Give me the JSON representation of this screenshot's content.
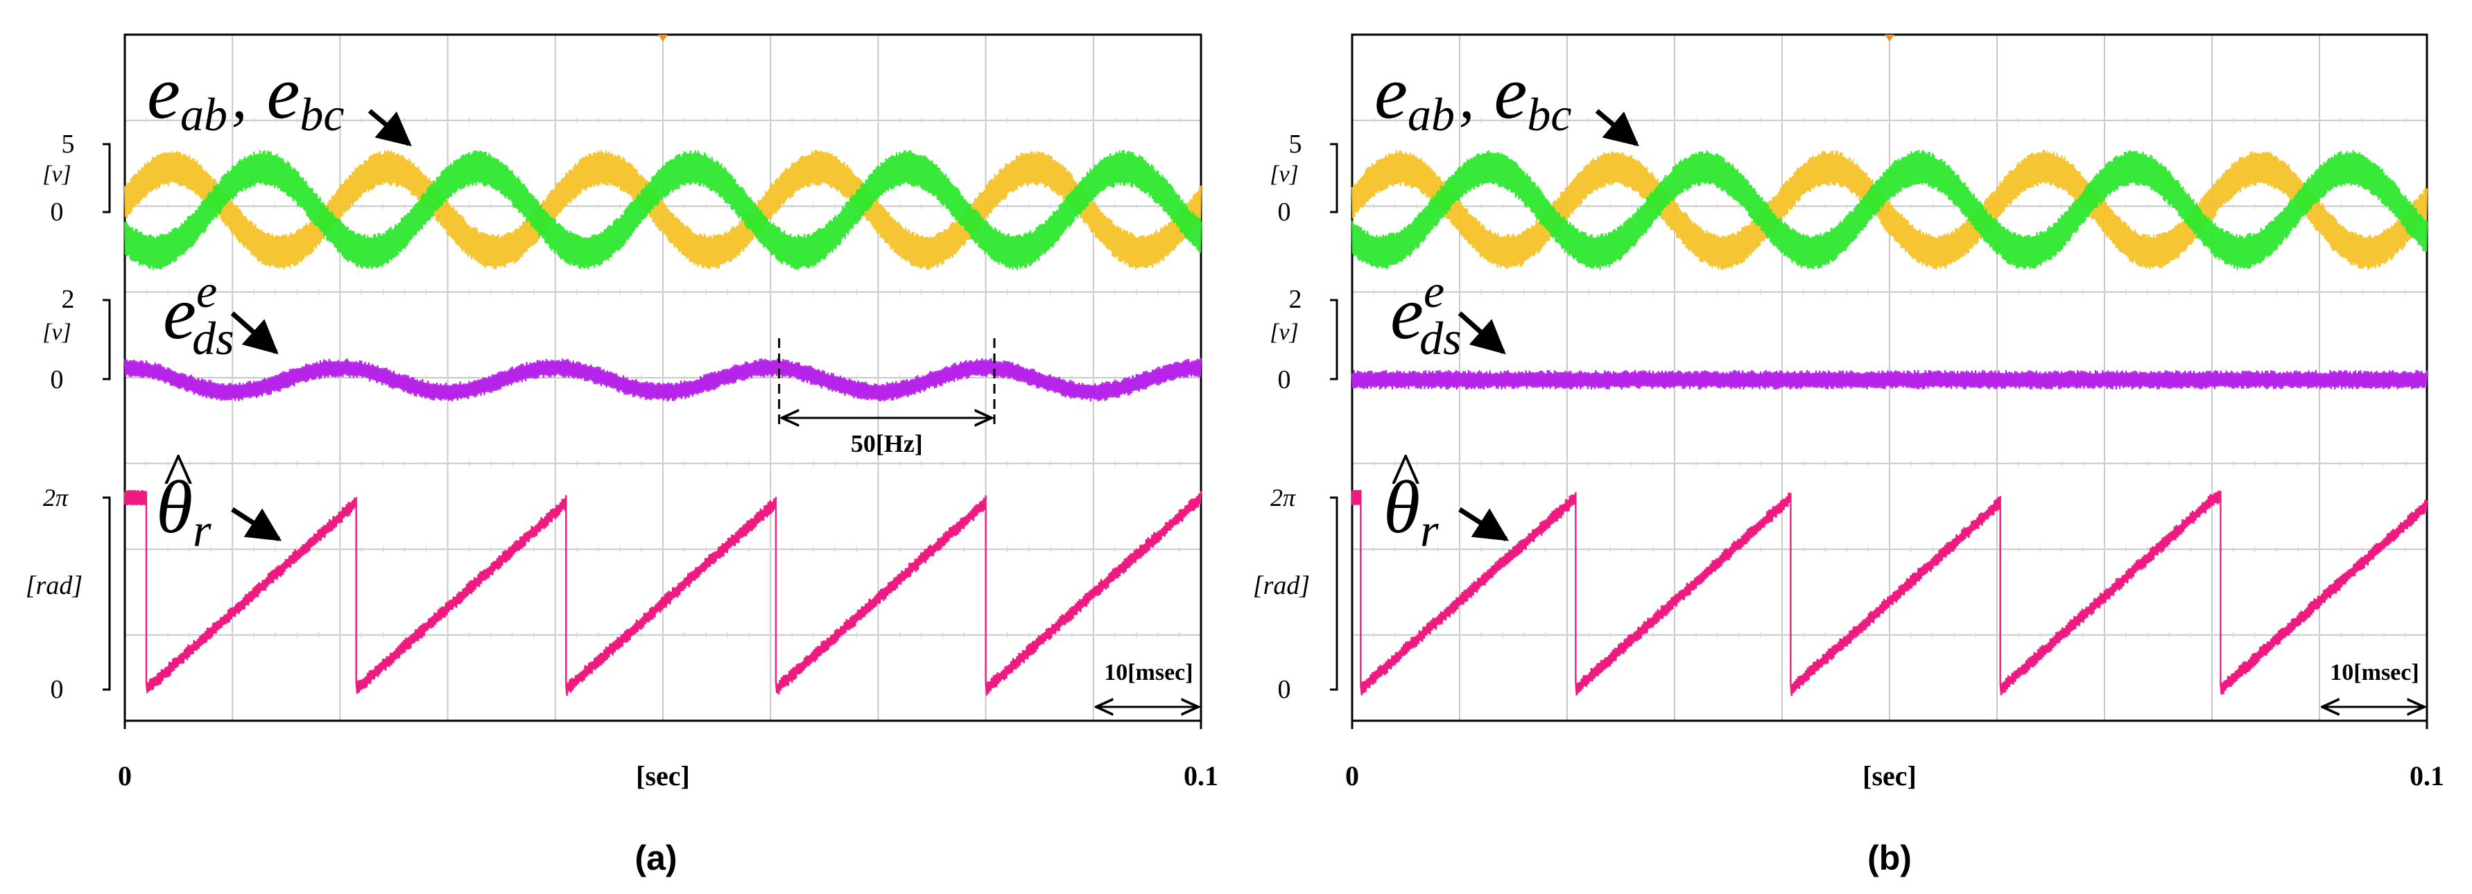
{
  "chart_data": [
    {
      "panel_id": "a",
      "type": "line",
      "caption": "(a)",
      "xlabel": "[sec]",
      "x_ticks": [
        "0",
        "0.1"
      ],
      "xlim": [
        0,
        0.1
      ],
      "grid": true,
      "traces": [
        {
          "id": "eab",
          "symbol": "e_ab",
          "base": "e",
          "sub": "ab",
          "separator": ",",
          "unit": "[v]",
          "ticks": [
            "5",
            "0"
          ],
          "color": "#f5c228",
          "kind": "sine",
          "frequency_hz": 50,
          "amplitude": 3.5,
          "phase_deg": 190
        },
        {
          "id": "ebc",
          "symbol": "e_bc",
          "base": "e",
          "sub": "bc",
          "color": "#2ee82e",
          "kind": "sine",
          "frequency_hz": 50,
          "amplitude": 3.5,
          "phase_deg": 40
        },
        {
          "id": "eds",
          "symbol": "e^e_ds",
          "base": "e",
          "sup": "e",
          "sub": "ds",
          "unit": "[v]",
          "ticks": [
            "2",
            "0"
          ],
          "color": "#b524e8",
          "kind": "sine",
          "frequency_hz": 50,
          "amplitude": 0.35,
          "phase_deg": -90
        },
        {
          "id": "theta",
          "symbol": "theta_hat_r",
          "base": "θ",
          "hat": "^",
          "sub": "r",
          "unit": "[rad]",
          "ticks": [
            "2π",
            "0"
          ],
          "color": "#ee1a80",
          "kind": "sawtooth",
          "frequency_hz": 50,
          "resets_sec": [
            0.002,
            0.0215,
            0.041,
            0.0605,
            0.08
          ],
          "start_value_rad": 6.2832,
          "range_rad": [
            0,
            6.2832
          ]
        }
      ],
      "annotations": [
        {
          "text": "50[Hz]",
          "from_sec": 0.0608,
          "to_sec": 0.0808
        },
        {
          "text": "10[msec]",
          "from_sec": 0.09,
          "to_sec": 0.1
        }
      ]
    },
    {
      "panel_id": "b",
      "type": "line",
      "caption": "(b)",
      "xlabel": "[sec]",
      "x_ticks": [
        "0",
        "0.1"
      ],
      "xlim": [
        0,
        0.1
      ],
      "grid": true,
      "traces": [
        {
          "id": "eab",
          "symbol": "e_ab",
          "base": "e",
          "sub": "ab",
          "separator": ",",
          "unit": "[v]",
          "ticks": [
            "5",
            "0"
          ],
          "color": "#f5c228",
          "kind": "sine",
          "frequency_hz": 50,
          "amplitude": 3.5,
          "phase_deg": 190
        },
        {
          "id": "ebc",
          "symbol": "e_bc",
          "base": "e",
          "sub": "bc",
          "color": "#2ee82e",
          "kind": "sine",
          "frequency_hz": 50,
          "amplitude": 3.5,
          "phase_deg": 40
        },
        {
          "id": "eds",
          "symbol": "e^e_ds",
          "base": "e",
          "sup": "e",
          "sub": "ds",
          "unit": "[v]",
          "ticks": [
            "2",
            "0"
          ],
          "color": "#b524e8",
          "kind": "sine",
          "frequency_hz": 50,
          "amplitude": 0.0,
          "phase_deg": 0
        },
        {
          "id": "theta",
          "symbol": "theta_hat_r",
          "base": "θ",
          "hat": "^",
          "sub": "r",
          "unit": "[rad]",
          "ticks": [
            "2π",
            "0"
          ],
          "color": "#ee1a80",
          "kind": "sawtooth",
          "frequency_hz": 50,
          "resets_sec": [
            0.0008,
            0.0208,
            0.0408,
            0.0603,
            0.0808
          ],
          "start_value_rad": 6.2832,
          "range_rad": [
            0,
            6.2832
          ]
        }
      ],
      "annotations": [
        {
          "text": "10[msec]",
          "from_sec": 0.09,
          "to_sec": 0.1
        }
      ]
    }
  ]
}
